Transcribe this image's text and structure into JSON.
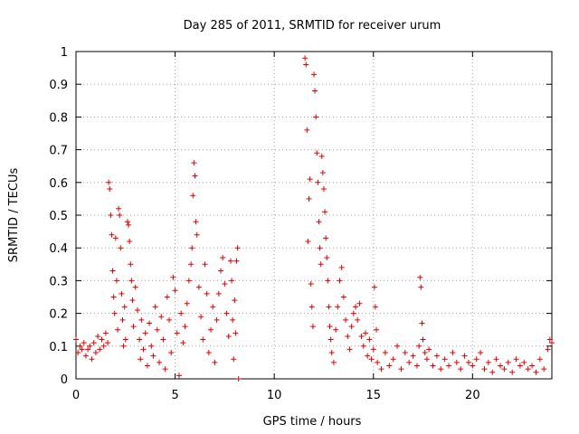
{
  "chart_data": {
    "type": "scatter",
    "title": "Day 285 of 2011, SRMTID for receiver urum",
    "xlabel": "GPS time / hours",
    "ylabel": "SRMTID / TECUs",
    "xlim": [
      0,
      24
    ],
    "ylim": [
      0,
      1
    ],
    "x_ticks": [
      0,
      5,
      10,
      15,
      20
    ],
    "x_tick_labels": [
      "0",
      "5",
      "10",
      "15",
      "20"
    ],
    "y_ticks": [
      0,
      0.1,
      0.2,
      0.3,
      0.4,
      0.5,
      0.6,
      0.7,
      0.8,
      0.9,
      1
    ],
    "y_tick_labels": [
      "0",
      "0.1",
      "0.2",
      "0.3",
      "0.4",
      "0.5",
      "0.6",
      "0.7",
      "0.8",
      "0.9",
      "1"
    ],
    "grid": true,
    "marker": "plus",
    "series": [
      {
        "name": "SRMTID",
        "color": "#e00000",
        "points": [
          [
            0.0,
            0.12
          ],
          [
            0.1,
            0.08
          ],
          [
            0.2,
            0.1
          ],
          [
            0.3,
            0.09
          ],
          [
            0.4,
            0.11
          ],
          [
            0.5,
            0.07
          ],
          [
            0.6,
            0.09
          ],
          [
            0.7,
            0.1
          ],
          [
            0.8,
            0.06
          ],
          [
            0.9,
            0.11
          ],
          [
            1.0,
            0.08
          ],
          [
            1.1,
            0.13
          ],
          [
            1.2,
            0.09
          ],
          [
            1.3,
            0.12
          ],
          [
            1.4,
            0.1
          ],
          [
            1.5,
            0.14
          ],
          [
            1.6,
            0.11
          ],
          [
            1.65,
            0.6
          ],
          [
            1.7,
            0.58
          ],
          [
            1.75,
            0.5
          ],
          [
            1.8,
            0.44
          ],
          [
            1.85,
            0.33
          ],
          [
            1.9,
            0.25
          ],
          [
            1.95,
            0.2
          ],
          [
            2.0,
            0.43
          ],
          [
            2.05,
            0.3
          ],
          [
            2.1,
            0.15
          ],
          [
            2.15,
            0.52
          ],
          [
            2.2,
            0.5
          ],
          [
            2.25,
            0.4
          ],
          [
            2.3,
            0.26
          ],
          [
            2.35,
            0.18
          ],
          [
            2.4,
            0.1
          ],
          [
            2.45,
            0.22
          ],
          [
            2.5,
            0.12
          ],
          [
            2.6,
            0.48
          ],
          [
            2.65,
            0.47
          ],
          [
            2.7,
            0.42
          ],
          [
            2.75,
            0.35
          ],
          [
            2.8,
            0.3
          ],
          [
            2.85,
            0.24
          ],
          [
            2.9,
            0.16
          ],
          [
            3.0,
            0.28
          ],
          [
            3.1,
            0.21
          ],
          [
            3.2,
            0.12
          ],
          [
            3.25,
            0.06
          ],
          [
            3.3,
            0.18
          ],
          [
            3.4,
            0.09
          ],
          [
            3.5,
            0.14
          ],
          [
            3.6,
            0.04
          ],
          [
            3.7,
            0.17
          ],
          [
            3.8,
            0.1
          ],
          [
            3.9,
            0.07
          ],
          [
            4.0,
            0.22
          ],
          [
            4.1,
            0.15
          ],
          [
            4.2,
            0.05
          ],
          [
            4.3,
            0.19
          ],
          [
            4.4,
            0.12
          ],
          [
            4.5,
            0.03
          ],
          [
            4.6,
            0.25
          ],
          [
            4.7,
            0.18
          ],
          [
            4.8,
            0.08
          ],
          [
            4.9,
            0.31
          ],
          [
            5.0,
            0.27
          ],
          [
            5.1,
            0.14
          ],
          [
            5.2,
            0.01
          ],
          [
            5.3,
            0.2
          ],
          [
            5.4,
            0.11
          ],
          [
            5.5,
            0.16
          ],
          [
            5.6,
            0.23
          ],
          [
            5.7,
            0.3
          ],
          [
            5.8,
            0.35
          ],
          [
            5.85,
            0.4
          ],
          [
            5.9,
            0.56
          ],
          [
            5.95,
            0.66
          ],
          [
            6.0,
            0.62
          ],
          [
            6.05,
            0.48
          ],
          [
            6.1,
            0.44
          ],
          [
            6.2,
            0.28
          ],
          [
            6.3,
            0.19
          ],
          [
            6.4,
            0.12
          ],
          [
            6.5,
            0.35
          ],
          [
            6.6,
            0.26
          ],
          [
            6.7,
            0.08
          ],
          [
            6.8,
            0.15
          ],
          [
            6.9,
            0.22
          ],
          [
            7.0,
            0.05
          ],
          [
            7.1,
            0.18
          ],
          [
            7.2,
            0.26
          ],
          [
            7.3,
            0.33
          ],
          [
            7.4,
            0.37
          ],
          [
            7.5,
            0.29
          ],
          [
            7.6,
            0.2
          ],
          [
            7.7,
            0.13
          ],
          [
            7.8,
            0.36
          ],
          [
            7.85,
            0.3
          ],
          [
            7.9,
            0.18
          ],
          [
            7.95,
            0.06
          ],
          [
            8.0,
            0.24
          ],
          [
            8.05,
            0.14
          ],
          [
            8.1,
            0.36
          ],
          [
            8.15,
            0.4
          ],
          [
            8.2,
            0.0
          ],
          [
            11.55,
            0.98
          ],
          [
            11.6,
            0.96
          ],
          [
            11.65,
            0.76
          ],
          [
            11.7,
            0.42
          ],
          [
            11.75,
            0.55
          ],
          [
            11.8,
            0.61
          ],
          [
            11.85,
            0.29
          ],
          [
            11.9,
            0.22
          ],
          [
            11.95,
            0.16
          ],
          [
            12.0,
            0.93
          ],
          [
            12.05,
            0.88
          ],
          [
            12.1,
            0.8
          ],
          [
            12.15,
            0.69
          ],
          [
            12.2,
            0.6
          ],
          [
            12.25,
            0.48
          ],
          [
            12.3,
            0.4
          ],
          [
            12.35,
            0.35
          ],
          [
            12.4,
            0.68
          ],
          [
            12.45,
            0.63
          ],
          [
            12.5,
            0.58
          ],
          [
            12.55,
            0.51
          ],
          [
            12.6,
            0.43
          ],
          [
            12.65,
            0.37
          ],
          [
            12.7,
            0.3
          ],
          [
            12.75,
            0.22
          ],
          [
            12.8,
            0.16
          ],
          [
            12.85,
            0.12
          ],
          [
            12.9,
            0.08
          ],
          [
            13.0,
            0.05
          ],
          [
            13.1,
            0.15
          ],
          [
            13.2,
            0.22
          ],
          [
            13.3,
            0.3
          ],
          [
            13.4,
            0.34
          ],
          [
            13.5,
            0.25
          ],
          [
            13.6,
            0.18
          ],
          [
            13.7,
            0.13
          ],
          [
            13.8,
            0.09
          ],
          [
            13.9,
            0.16
          ],
          [
            14.0,
            0.2
          ],
          [
            14.1,
            0.22
          ],
          [
            14.2,
            0.18
          ],
          [
            14.3,
            0.23
          ],
          [
            14.4,
            0.13
          ],
          [
            14.5,
            0.1
          ],
          [
            14.6,
            0.14
          ],
          [
            14.7,
            0.07
          ],
          [
            14.8,
            0.12
          ],
          [
            14.9,
            0.06
          ],
          [
            15.0,
            0.09
          ],
          [
            15.05,
            0.28
          ],
          [
            15.1,
            0.22
          ],
          [
            15.15,
            0.15
          ],
          [
            15.2,
            0.05
          ],
          [
            15.4,
            0.03
          ],
          [
            15.6,
            0.08
          ],
          [
            15.8,
            0.04
          ],
          [
            16.0,
            0.06
          ],
          [
            16.2,
            0.1
          ],
          [
            16.4,
            0.03
          ],
          [
            16.6,
            0.08
          ],
          [
            16.8,
            0.05
          ],
          [
            17.0,
            0.07
          ],
          [
            17.2,
            0.04
          ],
          [
            17.3,
            0.1
          ],
          [
            17.35,
            0.31
          ],
          [
            17.4,
            0.28
          ],
          [
            17.45,
            0.17
          ],
          [
            17.5,
            0.12
          ],
          [
            17.6,
            0.08
          ],
          [
            17.7,
            0.06
          ],
          [
            17.8,
            0.09
          ],
          [
            18.0,
            0.04
          ],
          [
            18.2,
            0.07
          ],
          [
            18.4,
            0.03
          ],
          [
            18.6,
            0.06
          ],
          [
            18.8,
            0.04
          ],
          [
            19.0,
            0.08
          ],
          [
            19.2,
            0.05
          ],
          [
            19.4,
            0.03
          ],
          [
            19.6,
            0.07
          ],
          [
            19.8,
            0.05
          ],
          [
            20.0,
            0.04
          ],
          [
            20.2,
            0.06
          ],
          [
            20.4,
            0.08
          ],
          [
            20.6,
            0.03
          ],
          [
            20.8,
            0.05
          ],
          [
            21.0,
            0.02
          ],
          [
            21.2,
            0.06
          ],
          [
            21.4,
            0.04
          ],
          [
            21.6,
            0.03
          ],
          [
            21.8,
            0.05
          ],
          [
            22.0,
            0.02
          ],
          [
            22.2,
            0.06
          ],
          [
            22.4,
            0.04
          ],
          [
            22.6,
            0.05
          ],
          [
            22.8,
            0.03
          ],
          [
            23.0,
            0.04
          ],
          [
            23.2,
            0.02
          ],
          [
            23.4,
            0.06
          ],
          [
            23.6,
            0.03
          ],
          [
            23.8,
            0.09
          ],
          [
            23.9,
            0.12
          ],
          [
            24.0,
            0.11
          ]
        ]
      }
    ]
  }
}
